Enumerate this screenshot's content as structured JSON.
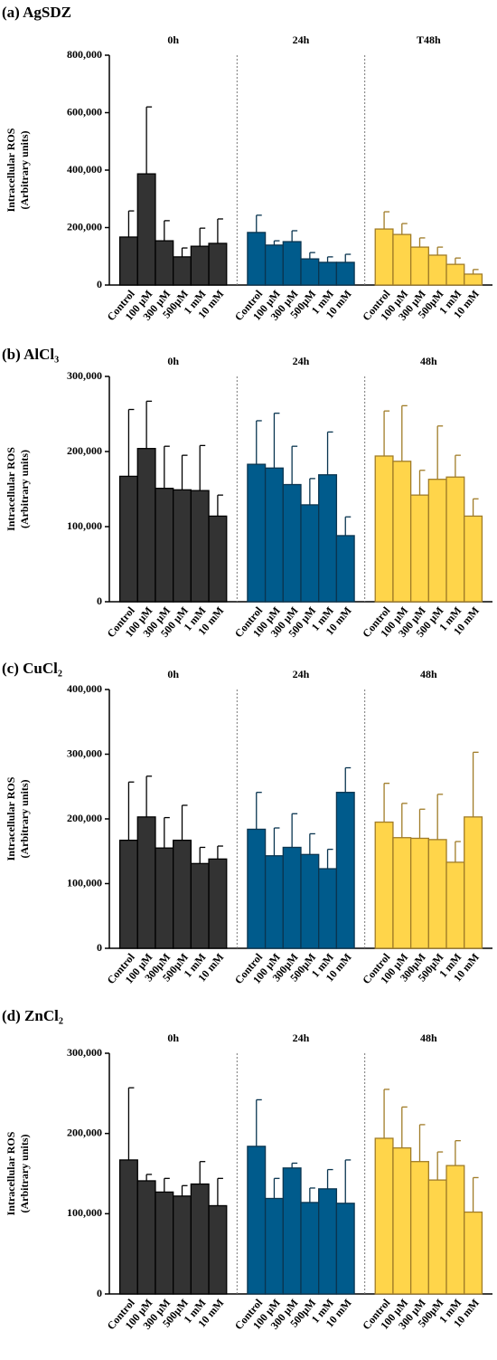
{
  "chart_data": [
    {
      "type": "bar",
      "title": "(a) AgSDZ",
      "ylabel": [
        "Intracellular ROS",
        "(Arbitrary units)"
      ],
      "categories": [
        "Control",
        "100 µM",
        "300 µM",
        "500µM",
        "1 mM",
        "10 mM"
      ],
      "ylim": [
        0,
        800000
      ],
      "yticks": [
        0,
        {
          "value": 200000,
          "label": "200,000"
        },
        {
          "value": 400000,
          "label": "400,000"
        },
        {
          "value": 600000,
          "label": "600,000"
        },
        {
          "value": 800000,
          "label": "800,000"
        }
      ],
      "series": [
        {
          "name": "0h",
          "color": "#333333",
          "values": [
            167000,
            387000,
            154000,
            98000,
            135000,
            145000
          ],
          "errors": [
            91000,
            233000,
            70000,
            31000,
            63000,
            85000
          ]
        },
        {
          "name": "24h",
          "color": "#005b8c",
          "values": [
            183000,
            139000,
            151000,
            91000,
            79000,
            79000
          ],
          "errors": [
            60000,
            15000,
            38000,
            22000,
            19000,
            28000
          ]
        },
        {
          "name": "T48h",
          "color": "#ffd54a",
          "values": [
            195000,
            176000,
            132000,
            104000,
            72000,
            38000
          ],
          "errors": [
            60000,
            38000,
            32000,
            28000,
            22000,
            16000
          ]
        }
      ]
    },
    {
      "type": "bar",
      "title": "(b) AlCl₃",
      "ylabel": [
        "Intracellular ROS",
        "(Arbitrary units)"
      ],
      "categories": [
        "Control",
        "100 µM",
        "300 µM",
        "500 µM",
        "1 mM",
        "10 mM"
      ],
      "ylim": [
        0,
        300000
      ],
      "yticks": [
        0,
        {
          "value": 100000,
          "label": "100,000"
        },
        {
          "value": 200000,
          "label": "200,000"
        },
        {
          "value": 300000,
          "label": "300,000"
        }
      ],
      "series": [
        {
          "name": "0h",
          "color": "#333333",
          "values": [
            167000,
            204000,
            151000,
            149000,
            148000,
            114000
          ],
          "errors": [
            89000,
            63000,
            56000,
            46000,
            60000,
            28000
          ]
        },
        {
          "name": "24h",
          "color": "#005b8c",
          "values": [
            183000,
            178000,
            156000,
            129000,
            169000,
            88000
          ],
          "errors": [
            58000,
            73000,
            51000,
            35000,
            57000,
            25000
          ]
        },
        {
          "name": "48h",
          "color": "#ffd54a",
          "values": [
            194000,
            187000,
            142000,
            163000,
            166000,
            114000
          ],
          "errors": [
            60000,
            74000,
            33000,
            71000,
            29000,
            23000
          ]
        }
      ]
    },
    {
      "type": "bar",
      "title": "(c) CuCl₂",
      "ylabel": [
        "Intracellular ROS",
        "(Arbitrary units)"
      ],
      "categories": [
        "Control",
        "100 µM",
        "300µM",
        "500µM",
        "1 mM",
        "10 mM"
      ],
      "ylim": [
        0,
        400000
      ],
      "yticks": [
        0,
        {
          "value": 100000,
          "label": "100,000"
        },
        {
          "value": 200000,
          "label": "200,000"
        },
        {
          "value": 300000,
          "label": "300,000"
        },
        {
          "value": 400000,
          "label": "400,000"
        }
      ],
      "series": [
        {
          "name": "0h",
          "color": "#333333",
          "values": [
            167000,
            203000,
            155000,
            167000,
            131000,
            138000
          ],
          "errors": [
            90000,
            63000,
            47000,
            54000,
            25000,
            20000
          ]
        },
        {
          "name": "24h",
          "color": "#005b8c",
          "values": [
            184000,
            143000,
            156000,
            145000,
            123000,
            241000
          ],
          "errors": [
            57000,
            43000,
            52000,
            32000,
            30000,
            38000
          ]
        },
        {
          "name": "48h",
          "color": "#ffd54a",
          "values": [
            195000,
            171000,
            170000,
            168000,
            133000,
            203000
          ],
          "errors": [
            60000,
            53000,
            45000,
            70000,
            32000,
            100000
          ]
        }
      ]
    },
    {
      "type": "bar",
      "title": "(d) ZnCl₂",
      "ylabel": [
        "Intracellular ROS",
        "(Arbitrary units)"
      ],
      "categories": [
        "Control",
        "100 µM",
        "300 µM",
        "500µM",
        "1 mM",
        "10 mM"
      ],
      "ylim": [
        0,
        300000
      ],
      "yticks": [
        0,
        {
          "value": 100000,
          "label": "100,000"
        },
        {
          "value": 200000,
          "label": "200,000"
        },
        {
          "value": 300000,
          "label": "300,000"
        }
      ],
      "series": [
        {
          "name": "0h",
          "color": "#333333",
          "values": [
            167000,
            141000,
            127000,
            122000,
            137000,
            110000
          ],
          "errors": [
            90000,
            8000,
            17000,
            13000,
            28000,
            34000
          ]
        },
        {
          "name": "24h",
          "color": "#005b8c",
          "values": [
            184000,
            119000,
            157000,
            114000,
            131000,
            113000
          ],
          "errors": [
            58000,
            25000,
            6000,
            18000,
            24000,
            54000
          ]
        },
        {
          "name": "48h",
          "color": "#ffd54a",
          "values": [
            194000,
            182000,
            165000,
            142000,
            160000,
            102000
          ],
          "errors": [
            61000,
            51000,
            46000,
            35000,
            31000,
            43000
          ]
        }
      ]
    }
  ]
}
